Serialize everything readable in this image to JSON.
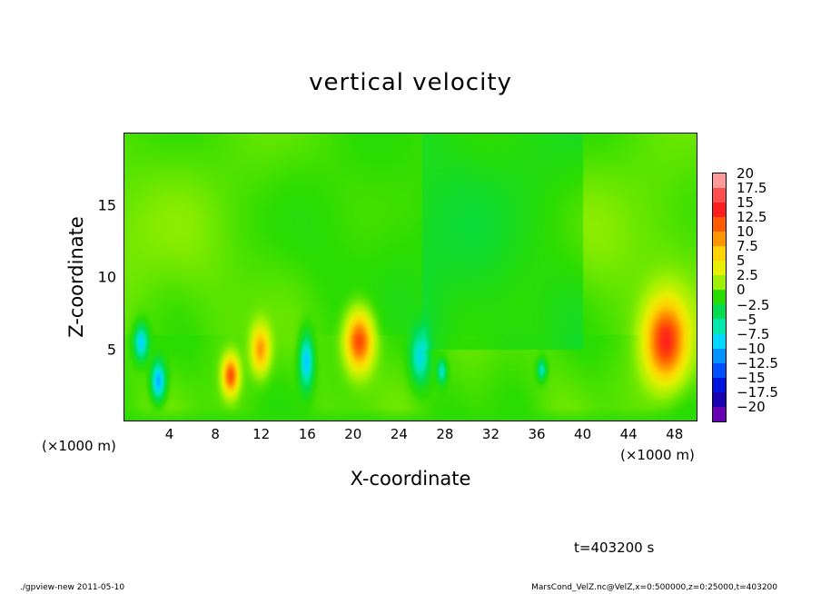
{
  "chart_data": {
    "type": "heatmap",
    "title": "vertical velocity",
    "xlabel": "X-coordinate",
    "ylabel": "Z-coordinate",
    "x_unit_left": "(×1000 m)",
    "x_unit_right": "(×1000 m)",
    "xlim": [
      0,
      50
    ],
    "ylim": [
      0,
      20
    ],
    "x_ticks": [
      4,
      8,
      12,
      16,
      20,
      24,
      28,
      32,
      36,
      40,
      44,
      48
    ],
    "y_ticks": [
      5,
      10,
      15
    ],
    "colorbar": {
      "levels": [
        "20",
        "17.5",
        "15",
        "12.5",
        "10",
        "7.5",
        "5",
        "2.5",
        "0",
        "−2.5",
        "−5",
        "−7.5",
        "−10",
        "−12.5",
        "−15",
        "−17.5",
        "−20"
      ],
      "colors": [
        "#ff9a9a",
        "#ff4e4e",
        "#ff1e1e",
        "#ff5a00",
        "#ff9600",
        "#ffd200",
        "#e6f000",
        "#9ef000",
        "#2bdc00",
        "#00dc50",
        "#00e8b0",
        "#00d8ff",
        "#0092ff",
        "#0050ff",
        "#0014e0",
        "#1800b0",
        "#6a00b4"
      ]
    },
    "features": [
      {
        "x": 47.2,
        "z": 5.5,
        "value": 14,
        "width": 1.8,
        "height": 2.8
      },
      {
        "x": 20.5,
        "z": 5.6,
        "value": 13,
        "width": 1.2,
        "height": 2.0
      },
      {
        "x": 9.3,
        "z": 3.2,
        "value": 12,
        "width": 0.7,
        "height": 1.3
      },
      {
        "x": 11.9,
        "z": 5.0,
        "value": 9,
        "width": 0.8,
        "height": 1.6
      },
      {
        "x": 3.0,
        "z": 2.8,
        "value": -10,
        "width": 0.6,
        "height": 1.3
      },
      {
        "x": 1.5,
        "z": 5.5,
        "value": -8,
        "width": 0.6,
        "height": 1.2
      },
      {
        "x": 15.9,
        "z": 4.2,
        "value": -9,
        "width": 0.6,
        "height": 1.8
      },
      {
        "x": 25.8,
        "z": 4.5,
        "value": -7,
        "width": 0.8,
        "height": 1.8
      },
      {
        "x": 27.7,
        "z": 3.5,
        "value": -6,
        "width": 0.4,
        "height": 0.8
      },
      {
        "x": 36.4,
        "z": 3.6,
        "value": -6,
        "width": 0.4,
        "height": 0.7
      }
    ]
  },
  "time_label": "t=403200 s",
  "footer_left": "./gpview-new   2011-05-10",
  "footer_right": "MarsCond_VelZ.nc@VelZ,x=0:500000,z=0:25000,t=403200"
}
